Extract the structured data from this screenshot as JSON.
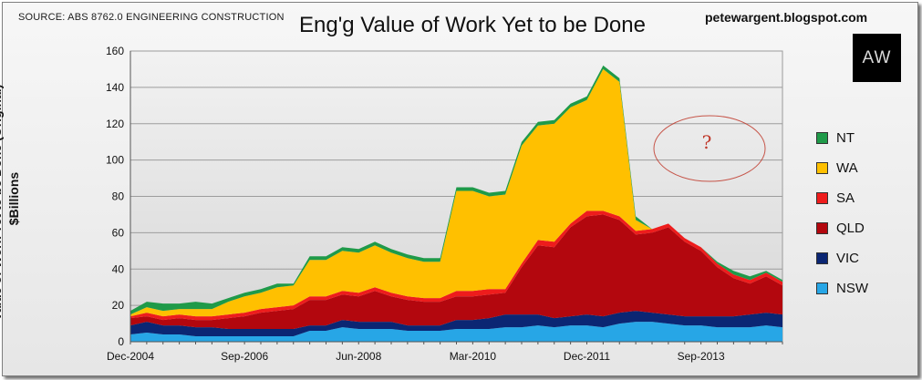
{
  "header": {
    "source": "SOURCE: ABS 8762.0 ENGINEERING CONSTRUCTION",
    "blog": "petewargent.blogspot.com",
    "logo_text": "AW"
  },
  "annotation": {
    "text": "?"
  },
  "colors": {
    "NT": "#1f9a49",
    "WA": "#ffc000",
    "SA": "#ee1c1c",
    "QLD": "#b3070e",
    "VIC": "#0b2673",
    "NSW": "#27a6e6"
  },
  "chart_data": {
    "type": "area",
    "stacked": true,
    "title": "Eng'g Value of Work Yet to be Done",
    "xlabel": "",
    "ylabel": "Value of Work Yet to be Done (Original) - $Billions",
    "ylim": [
      0,
      160
    ],
    "yticks": [
      0,
      20,
      40,
      60,
      80,
      100,
      120,
      140,
      160
    ],
    "grid": true,
    "legend_position": "right",
    "x_tick_labels": [
      "Dec-2004",
      "Sep-2006",
      "Jun-2008",
      "Mar-2010",
      "Dec-2011",
      "Sep-2013"
    ],
    "x_tick_index": [
      0,
      7,
      14,
      21,
      28,
      35
    ],
    "x": [
      "Dec-2004",
      "Mar-2005",
      "Jun-2005",
      "Sep-2005",
      "Dec-2005",
      "Mar-2006",
      "Jun-2006",
      "Sep-2006",
      "Dec-2006",
      "Mar-2007",
      "Jun-2007",
      "Sep-2007",
      "Dec-2007",
      "Mar-2008",
      "Jun-2008",
      "Sep-2008",
      "Dec-2008",
      "Mar-2009",
      "Jun-2009",
      "Sep-2009",
      "Dec-2009",
      "Mar-2010",
      "Jun-2010",
      "Sep-2010",
      "Dec-2010",
      "Mar-2011",
      "Jun-2011",
      "Sep-2011",
      "Dec-2011",
      "Mar-2012",
      "Jun-2012",
      "Sep-2012",
      "Dec-2012",
      "Mar-2013",
      "Jun-2013",
      "Sep-2013",
      "Dec-2013",
      "Mar-2014",
      "Jun-2014",
      "Sep-2014",
      "Dec-2014"
    ],
    "totals": [
      17,
      22,
      21,
      21,
      22,
      21,
      24,
      27,
      29,
      32,
      32,
      47,
      47,
      52,
      51,
      55,
      51,
      48,
      46,
      46,
      85,
      85,
      82,
      83,
      110,
      121,
      122,
      131,
      135,
      152,
      145,
      69,
      62,
      65,
      57,
      52,
      44,
      39,
      36,
      39,
      34
    ],
    "series": [
      {
        "name": "NSW",
        "values": [
          4,
          5,
          4,
          4,
          3,
          3,
          3,
          3,
          3,
          3,
          3,
          6,
          6,
          8,
          7,
          7,
          7,
          6,
          6,
          6,
          7,
          7,
          7,
          8,
          8,
          9,
          8,
          9,
          9,
          8,
          10,
          11,
          11,
          10,
          9,
          9,
          8,
          8,
          8,
          9,
          8
        ]
      },
      {
        "name": "VIC",
        "values": [
          5,
          6,
          5,
          5,
          5,
          5,
          4,
          4,
          4,
          4,
          4,
          3,
          3,
          4,
          4,
          4,
          4,
          3,
          3,
          3,
          5,
          5,
          6,
          7,
          7,
          6,
          5,
          5,
          6,
          6,
          6,
          6,
          5,
          5,
          5,
          5,
          6,
          6,
          7,
          7,
          7
        ]
      },
      {
        "name": "QLD",
        "values": [
          4,
          3,
          3,
          4,
          4,
          4,
          6,
          7,
          9,
          10,
          11,
          14,
          14,
          14,
          14,
          17,
          14,
          14,
          13,
          13,
          13,
          13,
          13,
          12,
          26,
          38,
          39,
          49,
          54,
          56,
          51,
          42,
          44,
          48,
          41,
          36,
          27,
          21,
          17,
          20,
          16
        ]
      },
      {
        "name": "SA",
        "values": [
          1,
          2,
          2,
          2,
          2,
          2,
          2,
          2,
          2,
          2,
          2,
          2,
          2,
          2,
          2,
          2,
          2,
          2,
          2,
          2,
          3,
          3,
          3,
          2,
          2,
          3,
          3,
          2,
          3,
          2,
          2,
          2,
          2,
          2,
          2,
          2,
          2,
          2,
          2,
          2,
          2
        ]
      },
      {
        "name": "WA",
        "values": [
          1,
          3,
          3,
          3,
          4,
          4,
          7,
          9,
          9,
          11,
          11,
          20,
          20,
          22,
          22,
          23,
          22,
          21,
          20,
          20,
          55,
          55,
          51,
          52,
          65,
          63,
          65,
          64,
          61,
          78,
          74,
          6,
          0,
          0,
          0,
          0,
          0,
          0,
          0,
          0,
          0
        ]
      },
      {
        "name": "NT",
        "values": [
          2,
          3,
          4,
          3,
          4,
          3,
          2,
          2,
          2,
          2,
          1,
          2,
          2,
          2,
          2,
          2,
          2,
          2,
          2,
          2,
          2,
          2,
          2,
          2,
          2,
          2,
          2,
          2,
          2,
          2,
          2,
          2,
          0,
          0,
          0,
          0,
          1,
          2,
          2,
          1,
          1
        ]
      }
    ]
  }
}
